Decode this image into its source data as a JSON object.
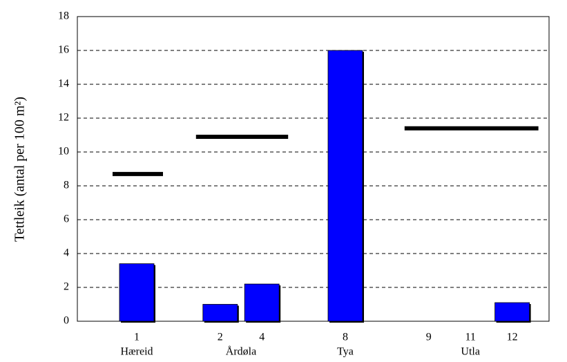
{
  "chart_data": {
    "type": "bar",
    "y_label": "Tettleik (antal per 100 m²)",
    "categories": [
      null,
      "1",
      null,
      "2",
      "4",
      null,
      "8",
      null,
      "9",
      "11",
      "12"
    ],
    "values": [
      null,
      3.4,
      null,
      1.0,
      2.2,
      null,
      16,
      null,
      0,
      0,
      1.1
    ],
    "color": "#0000ff",
    "groups": [
      {
        "name": "Hæreid",
        "level": 8.7
      },
      {
        "name": "Årdøla",
        "level": 10.9
      },
      {
        "name": "Tya"
      },
      {
        "name": "Utla",
        "level": 11.4
      }
    ],
    "level_color": "#000000",
    "ylim": [
      0,
      18
    ],
    "yticks": [
      0,
      2,
      4,
      6,
      8,
      10,
      12,
      14,
      16,
      18
    ],
    "grid": true
  }
}
